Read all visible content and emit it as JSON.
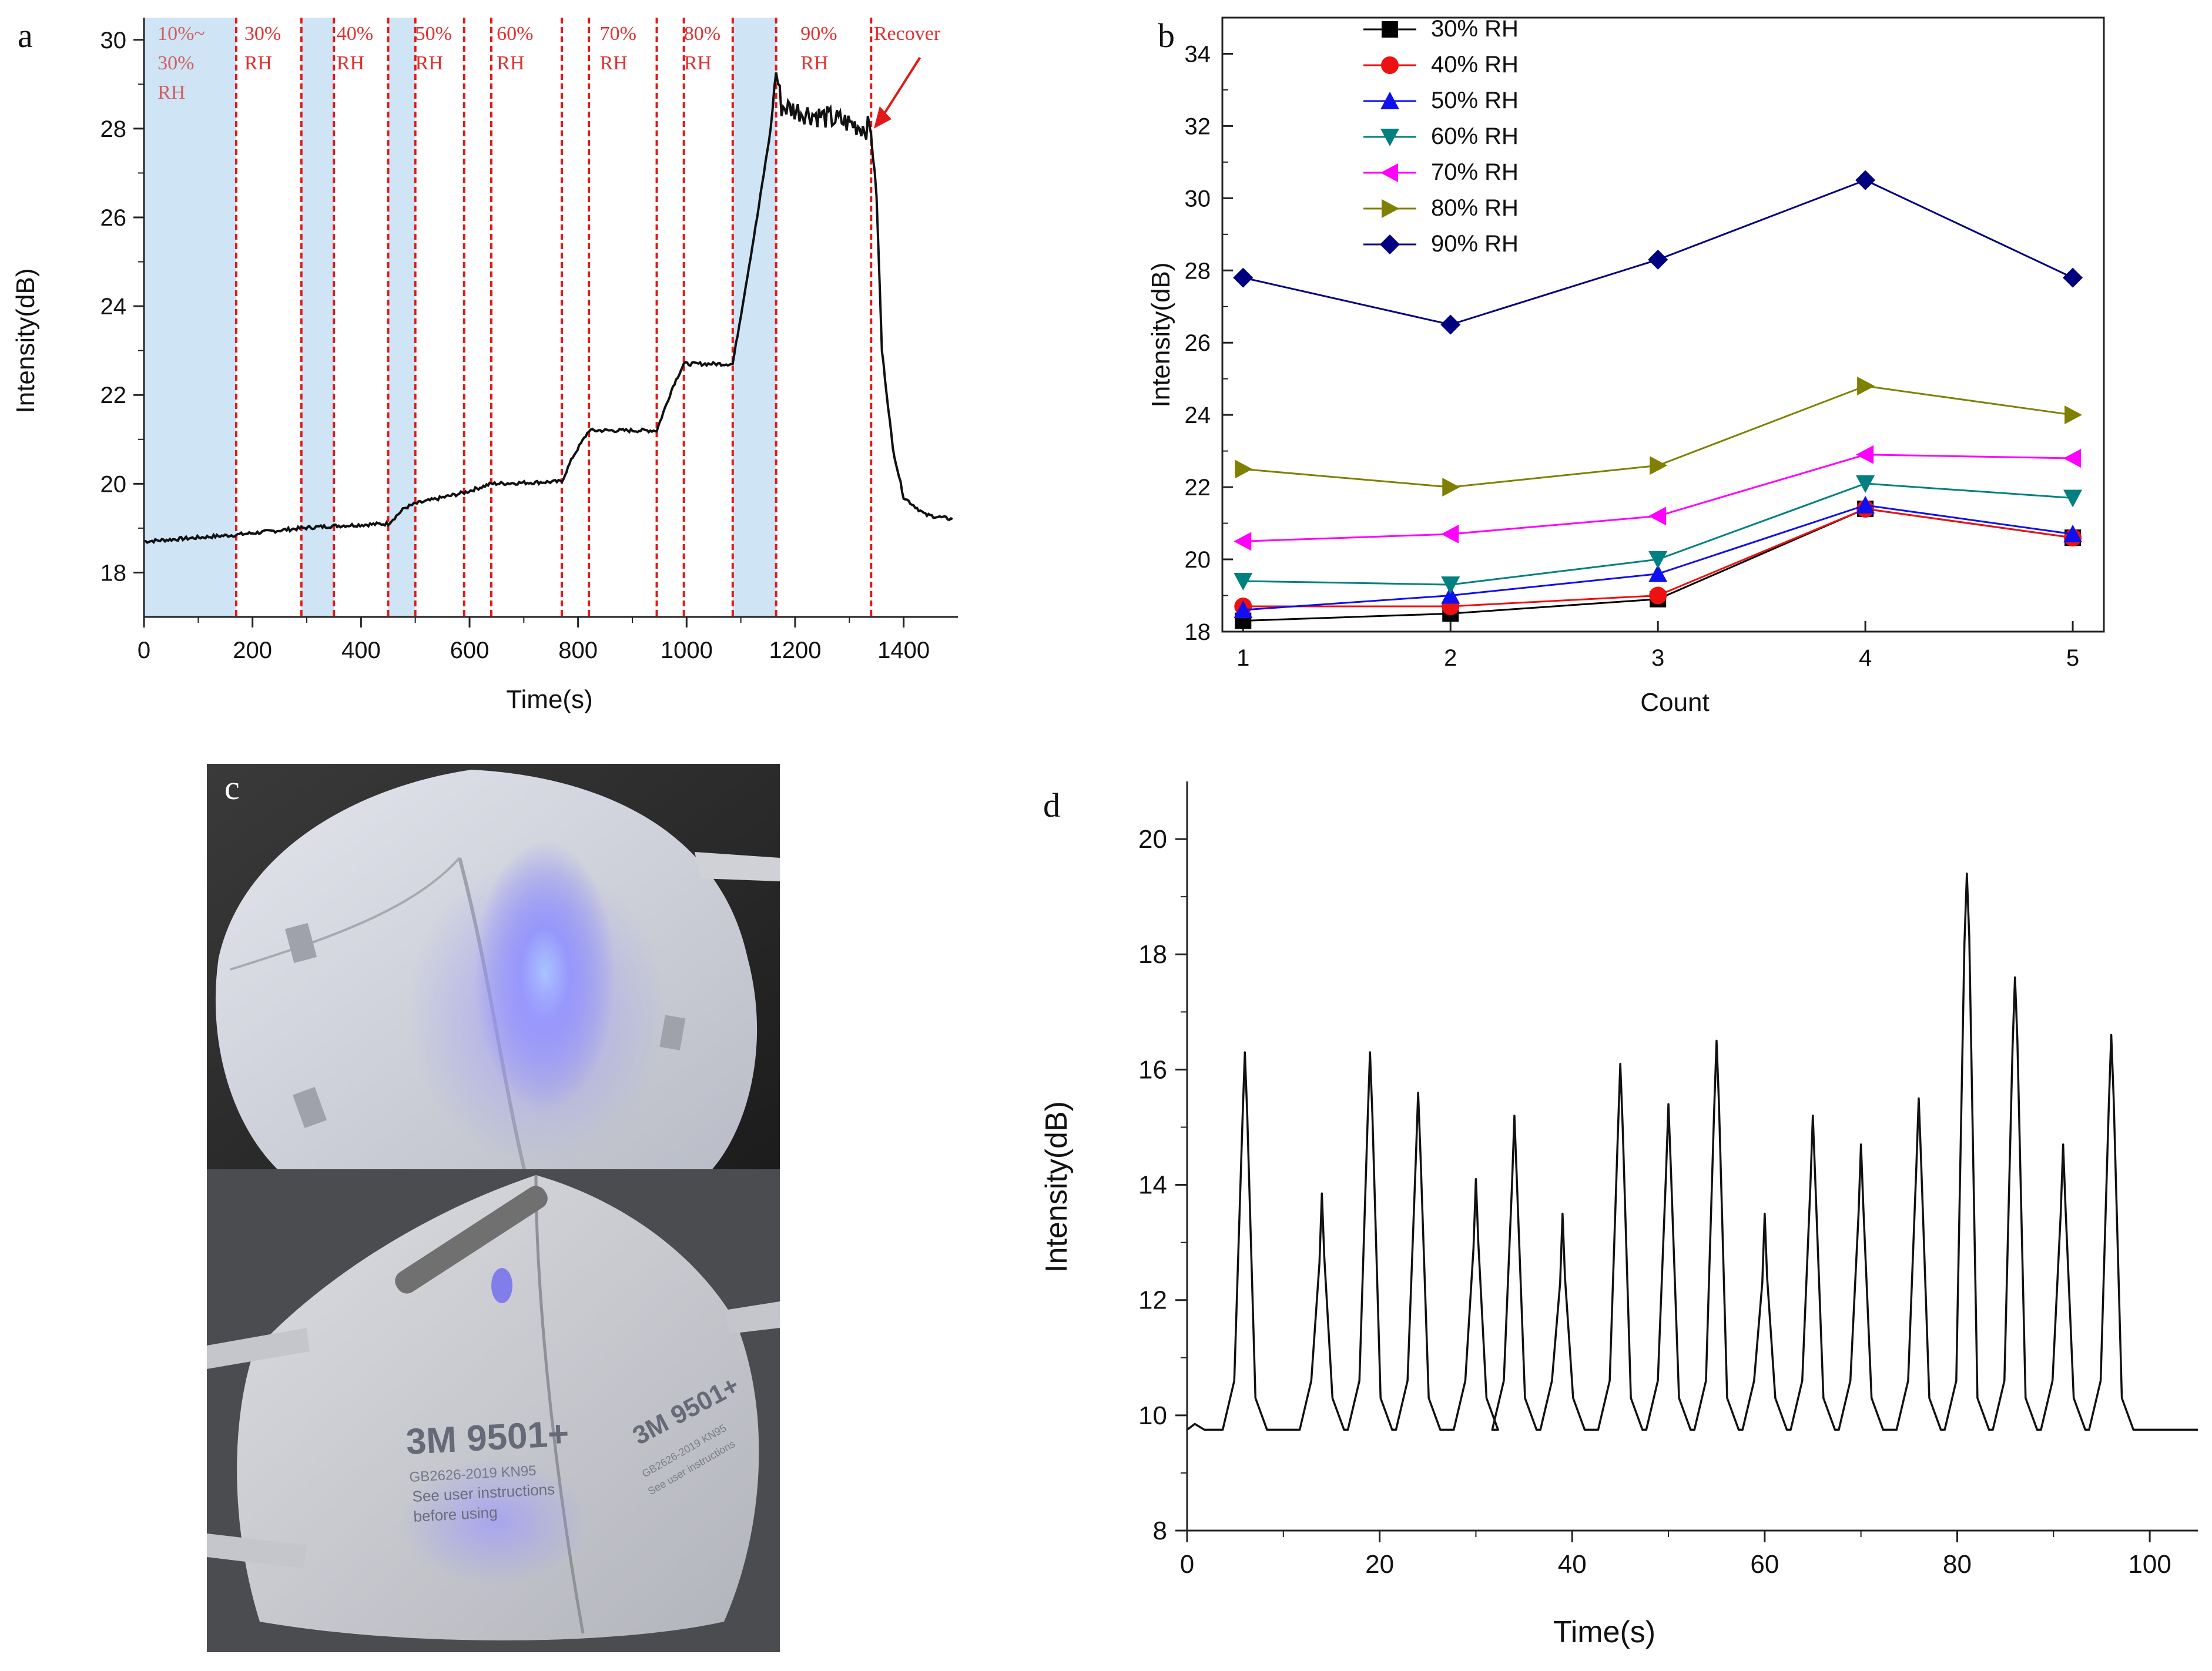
{
  "chart_data": [
    {
      "id": "a",
      "type": "line",
      "panel_label": "a",
      "xlabel": "Time(s)",
      "ylabel": "Intensity(dB)",
      "xlim": [
        0,
        1500
      ],
      "ylim": [
        17,
        30.5
      ],
      "xticks": [
        0,
        200,
        400,
        600,
        800,
        1000,
        1200,
        1400
      ],
      "yticks": [
        18,
        20,
        22,
        24,
        26,
        28,
        30
      ],
      "band_color": "#cfe4f5",
      "line_color": "#111111",
      "dash_color": "#e01a1a",
      "bands": [
        [
          0,
          170
        ],
        [
          290,
          350
        ],
        [
          450,
          500
        ],
        [
          1085,
          1165
        ]
      ],
      "dashed_lines": [
        170,
        290,
        350,
        450,
        500,
        590,
        640,
        770,
        820,
        945,
        995,
        1085,
        1165,
        1340
      ],
      "region_labels": [
        {
          "x": 25,
          "lines": [
            "10%~",
            "30%",
            "RH"
          ],
          "faint": true
        },
        {
          "x": 185,
          "lines": [
            "30%",
            "RH"
          ]
        },
        {
          "x": 355,
          "lines": [
            "40%",
            "RH"
          ]
        },
        {
          "x": 500,
          "lines": [
            "50%",
            "RH"
          ]
        },
        {
          "x": 650,
          "lines": [
            "60%",
            "RH"
          ]
        },
        {
          "x": 840,
          "lines": [
            "70%",
            "RH"
          ]
        },
        {
          "x": 995,
          "lines": [
            "80%",
            "RH"
          ]
        },
        {
          "x": 1210,
          "lines": [
            "90%",
            "RH"
          ]
        },
        {
          "x": 1345,
          "lines": [
            "Recover"
          ]
        }
      ],
      "series_points": [
        [
          0,
          18.7
        ],
        [
          170,
          18.85
        ],
        [
          290,
          19.0
        ],
        [
          350,
          19.05
        ],
        [
          450,
          19.1
        ],
        [
          480,
          19.45
        ],
        [
          500,
          19.55
        ],
        [
          590,
          19.8
        ],
        [
          640,
          20.0
        ],
        [
          770,
          20.05
        ],
        [
          790,
          20.6
        ],
        [
          820,
          21.2
        ],
        [
          945,
          21.2
        ],
        [
          975,
          22.2
        ],
        [
          995,
          22.7
        ],
        [
          1085,
          22.7
        ],
        [
          1100,
          23.8
        ],
        [
          1130,
          26.0
        ],
        [
          1155,
          28.0
        ],
        [
          1165,
          29.3
        ],
        [
          1175,
          28.5
        ],
        [
          1340,
          28.0
        ],
        [
          1350,
          26.5
        ],
        [
          1360,
          23.0
        ],
        [
          1380,
          20.8
        ],
        [
          1400,
          19.7
        ],
        [
          1440,
          19.3
        ],
        [
          1490,
          19.2
        ]
      ]
    },
    {
      "id": "b",
      "type": "line",
      "panel_label": "b",
      "xlabel": "Count",
      "ylabel": "Intensity(dB)",
      "xlim": [
        0.9,
        5.15
      ],
      "ylim": [
        18,
        35
      ],
      "xticks": [
        1,
        2,
        3,
        4,
        5
      ],
      "yticks": [
        18,
        20,
        22,
        24,
        26,
        28,
        30,
        32,
        34
      ],
      "categories": [
        1,
        2,
        3,
        4,
        5
      ],
      "series": [
        {
          "name": "30% RH",
          "color": "#000000",
          "marker": "square",
          "values": [
            18.3,
            18.5,
            18.9,
            21.4,
            20.6
          ]
        },
        {
          "name": "40% RH",
          "color": "#ee1111",
          "marker": "circle",
          "values": [
            18.7,
            18.7,
            19.0,
            21.4,
            20.6
          ]
        },
        {
          "name": "50% RH",
          "color": "#1010ee",
          "marker": "triangle-up",
          "values": [
            18.6,
            19.0,
            19.6,
            21.5,
            20.7
          ]
        },
        {
          "name": "60% RH",
          "color": "#008080",
          "marker": "triangle-down",
          "values": [
            19.4,
            19.3,
            20.0,
            22.1,
            21.7
          ]
        },
        {
          "name": "70% RH",
          "color": "#ff00ff",
          "marker": "triangle-left",
          "values": [
            20.5,
            20.7,
            21.2,
            22.9,
            22.8
          ]
        },
        {
          "name": "80% RH",
          "color": "#808000",
          "marker": "triangle-right",
          "values": [
            22.5,
            22.0,
            22.6,
            24.8,
            24.0
          ]
        },
        {
          "name": "90% RH",
          "color": "#000080",
          "marker": "diamond",
          "values": [
            27.8,
            26.5,
            28.3,
            30.5,
            27.8
          ]
        }
      ]
    },
    {
      "id": "d",
      "type": "line",
      "panel_label": "d",
      "xlabel": "Time(s)",
      "ylabel": "Intensity(dB)",
      "xlim": [
        0,
        105
      ],
      "ylim": [
        8,
        21
      ],
      "xticks": [
        0,
        20,
        40,
        60,
        80,
        100
      ],
      "yticks": [
        8,
        10,
        12,
        14,
        16,
        18,
        20
      ],
      "baseline": 9.75,
      "peaks": [
        [
          6,
          16.3
        ],
        [
          14,
          13.85
        ],
        [
          19,
          16.3
        ],
        [
          24,
          15.6
        ],
        [
          30,
          14.1
        ],
        [
          34,
          15.2
        ],
        [
          39,
          13.5
        ],
        [
          45,
          16.1
        ],
        [
          50,
          15.4
        ],
        [
          55,
          16.5
        ],
        [
          60,
          13.5
        ],
        [
          65,
          15.2
        ],
        [
          70,
          14.7
        ],
        [
          76,
          15.5
        ],
        [
          81,
          19.4
        ],
        [
          86,
          17.6
        ],
        [
          91,
          14.7
        ],
        [
          96,
          16.6
        ]
      ]
    }
  ],
  "photo": {
    "panel_label": "c",
    "mask_brand": "3M 9501+",
    "mask_brand_side": "3M 9501+",
    "mask_line1": "GB2626-2019 KN95",
    "mask_line2": "See user instructions",
    "mask_line3": "before using",
    "mask_side_line1": "GB2626-2019 KN95",
    "mask_side_line2": "See user instructions"
  }
}
